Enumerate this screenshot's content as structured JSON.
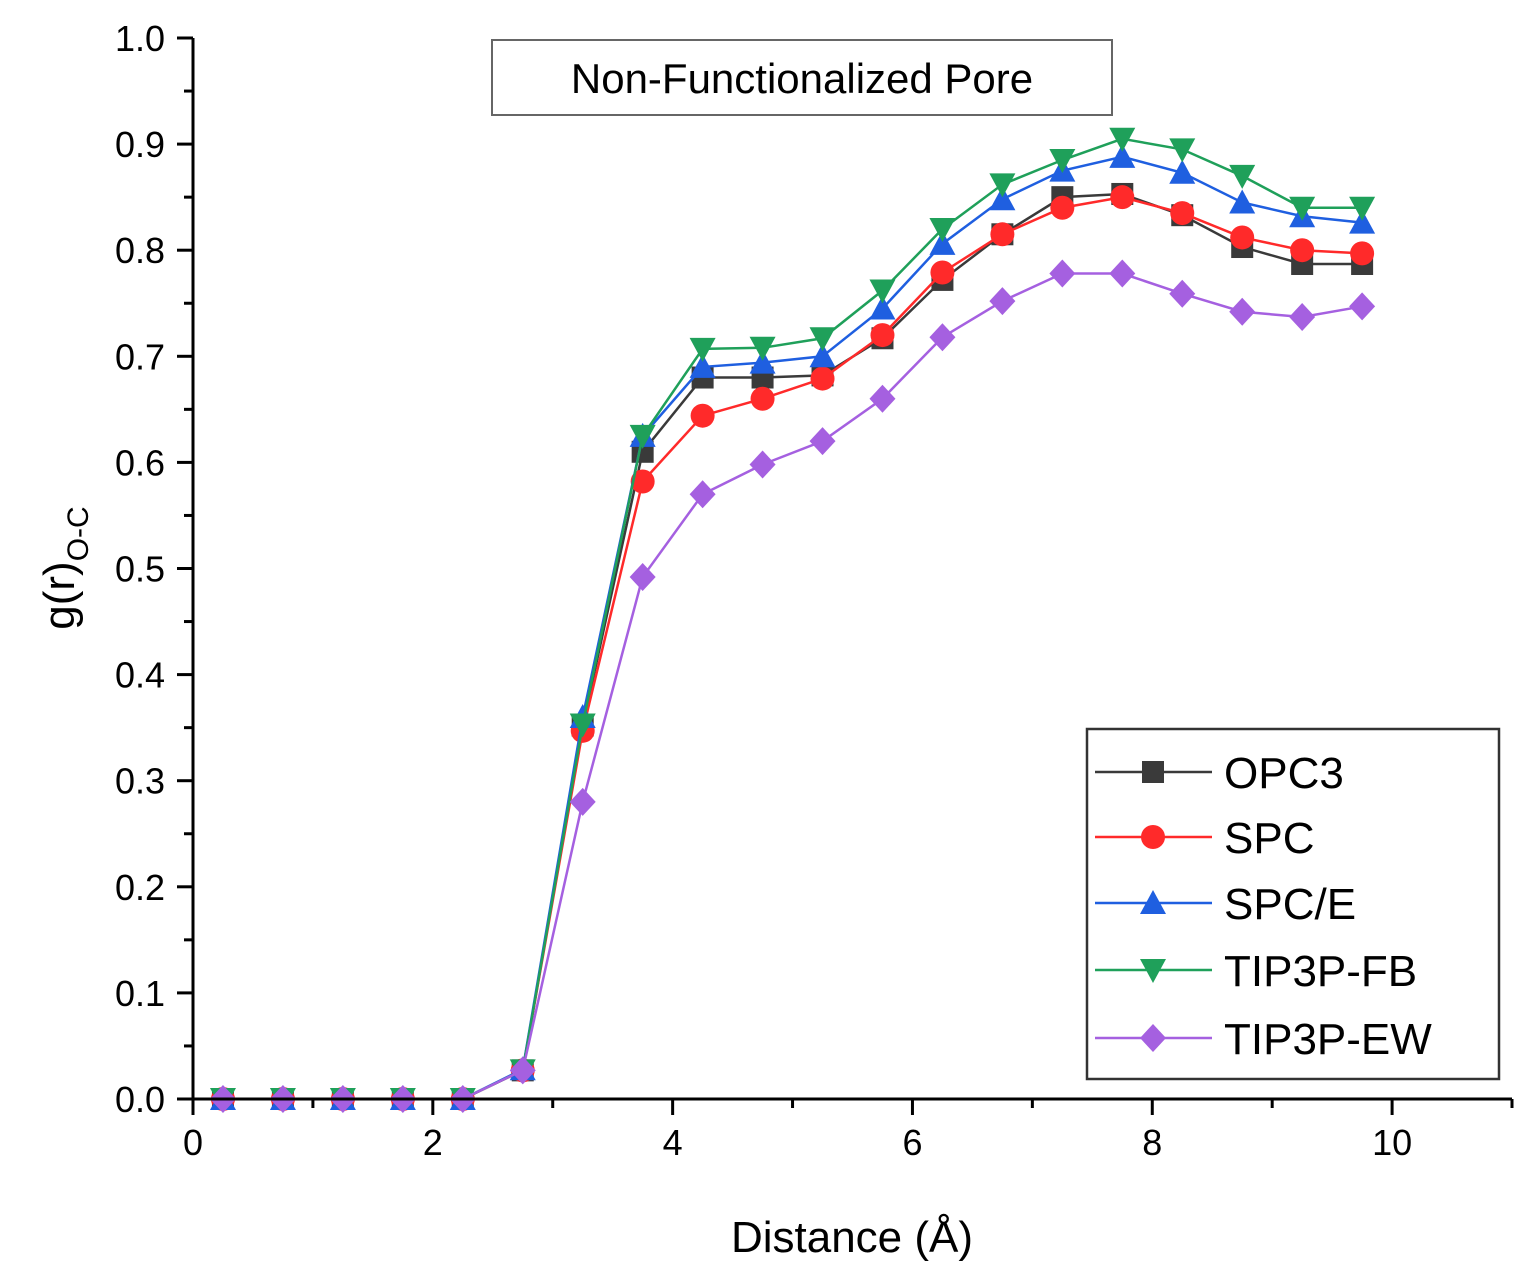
{
  "chart_data": {
    "type": "line",
    "title": "Non-Functionalized Pore",
    "xlabel": "Distance (Å)",
    "ylabel_main": "g(r)",
    "ylabel_sub": "O-C",
    "xlim": [
      0,
      11
    ],
    "ylim": [
      0,
      1.0
    ],
    "x_ticks": [
      0,
      2,
      4,
      6,
      8,
      10
    ],
    "x_tick_labels": [
      "0",
      "2",
      "4",
      "6",
      "8",
      "10"
    ],
    "y_ticks": [
      0,
      0.1,
      0.2,
      0.3,
      0.4,
      0.5,
      0.6,
      0.7,
      0.8,
      0.9,
      1.0
    ],
    "y_tick_labels": [
      "0.0",
      "0.1",
      "0.2",
      "0.3",
      "0.4",
      "0.5",
      "0.6",
      "0.7",
      "0.8",
      "0.9",
      "1.0"
    ],
    "legend_position": "bottom-right",
    "x": [
      0.25,
      0.75,
      1.25,
      1.75,
      2.25,
      2.75,
      3.25,
      3.75,
      4.25,
      4.75,
      5.25,
      5.75,
      6.25,
      6.75,
      7.25,
      7.75,
      8.25,
      8.75,
      9.25,
      9.75
    ],
    "series": [
      {
        "name": "OPC3",
        "color": "#3a3a3a",
        "marker": "square",
        "values": [
          0,
          0,
          0,
          0,
          0,
          0.027,
          0.352,
          0.61,
          0.68,
          0.68,
          0.682,
          0.717,
          0.772,
          0.815,
          0.85,
          0.853,
          0.833,
          0.803,
          0.787,
          0.787
        ]
      },
      {
        "name": "SPC",
        "color": "#ff2a2a",
        "marker": "circle",
        "values": [
          0,
          0,
          0,
          0,
          0,
          0.027,
          0.347,
          0.582,
          0.644,
          0.66,
          0.679,
          0.72,
          0.779,
          0.815,
          0.84,
          0.85,
          0.835,
          0.812,
          0.8,
          0.797
        ]
      },
      {
        "name": "SPC/E",
        "color": "#1f5fe0",
        "marker": "triangle-up",
        "values": [
          0,
          0,
          0,
          0,
          0,
          0.028,
          0.36,
          0.625,
          0.69,
          0.694,
          0.7,
          0.745,
          0.806,
          0.848,
          0.875,
          0.888,
          0.873,
          0.845,
          0.832,
          0.826
        ]
      },
      {
        "name": "TIP3P-FB",
        "color": "#1fa05a",
        "marker": "triangle-down",
        "values": [
          0,
          0,
          0,
          0,
          0,
          0.027,
          0.353,
          0.625,
          0.707,
          0.708,
          0.717,
          0.762,
          0.82,
          0.862,
          0.885,
          0.905,
          0.895,
          0.87,
          0.84,
          0.84
        ]
      },
      {
        "name": "TIP3P-EW",
        "color": "#a560e0",
        "marker": "diamond",
        "values": [
          0,
          0,
          0,
          0,
          0,
          0.027,
          0.28,
          0.492,
          0.57,
          0.598,
          0.62,
          0.66,
          0.718,
          0.752,
          0.778,
          0.778,
          0.759,
          0.742,
          0.737,
          0.747
        ]
      }
    ]
  }
}
